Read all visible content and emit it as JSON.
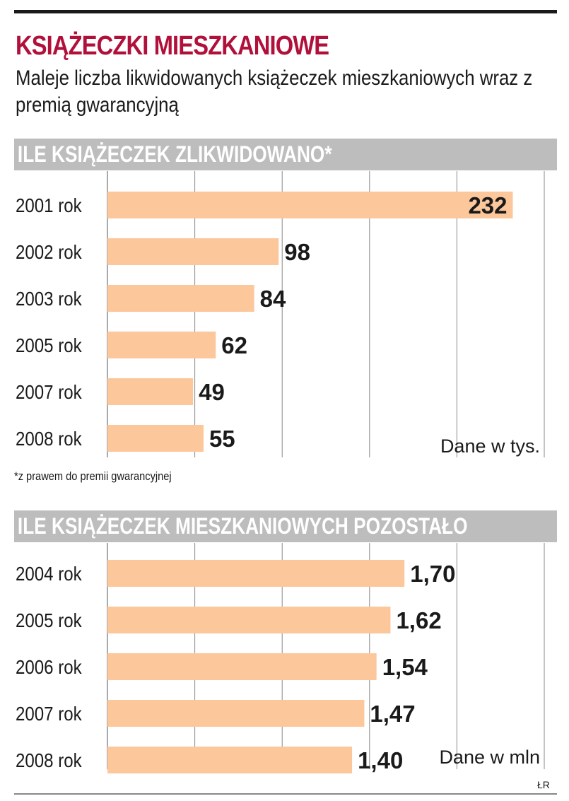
{
  "title": "KSIĄŻECZKI MIESZKANIOWE",
  "subtitle": "Maleje liczba likwidowanych książeczek mieszkaniowych wraz z premią gwarancyjną",
  "footnote": "*z prawem do premii gwarancyjnej",
  "credit": "ŁR",
  "colors": {
    "accent": "#b0103a",
    "bar": "#fdc79c",
    "header": "#bdbdbd",
    "grid": "#888888"
  },
  "chart_data": [
    {
      "type": "bar",
      "orientation": "horizontal",
      "title": "ILE KSIĄŻECZEK ZLIKWIDOWANO*",
      "unit_note": "Dane w tys.",
      "categories": [
        "2001 rok",
        "2002 rok",
        "2003 rok",
        "2005 rok",
        "2007 rok",
        "2008 rok"
      ],
      "values": [
        232,
        98,
        84,
        62,
        49,
        55
      ],
      "value_labels": [
        "232",
        "98",
        "84",
        "62",
        "49",
        "55"
      ],
      "xlim": [
        0,
        250
      ],
      "grid": true
    },
    {
      "type": "bar",
      "orientation": "horizontal",
      "title": "ILE KSIĄŻECZEK MIESZKANIOWYCH POZOSTAŁO",
      "unit_note": "Dane w mln",
      "categories": [
        "2004 rok",
        "2005 rok",
        "2006 rok",
        "2007 rok",
        "2008 rok"
      ],
      "values": [
        1.7,
        1.62,
        1.54,
        1.47,
        1.4
      ],
      "value_labels": [
        "1,70",
        "1,62",
        "1,54",
        "1,47",
        "1,40"
      ],
      "xlim": [
        0,
        2.5
      ],
      "grid": true
    }
  ]
}
